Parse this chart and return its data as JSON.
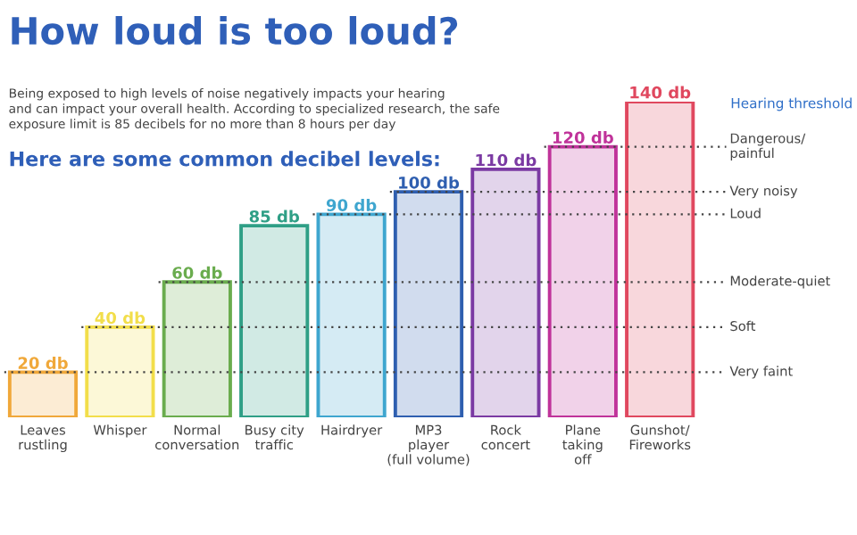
{
  "chart_data": {
    "type": "bar",
    "title": "How loud is too loud?",
    "subtitle": "Being exposed to high levels of noise negatively impacts your hearing\nand can impact your overall health. According to specialized research, the safe\nexposure limit is 85 decibels for no more than 8 hours per day",
    "annotations": [
      "Here are some common decibel levels:",
      "Hearing threshold"
    ],
    "categories": [
      "Leaves\nrustling",
      "Whisper",
      "Normal\nconversation",
      "Busy city\ntraffic",
      "Hairdryer",
      "MP3\nplayer\n(full volume)",
      "Rock\nconcert",
      "Plane\ntaking\noff",
      "Gunshot/\nFireworks"
    ],
    "values": [
      20,
      40,
      60,
      85,
      90,
      100,
      110,
      120,
      140
    ],
    "value_labels": [
      "20 db",
      "40 db",
      "60 db",
      "85 db",
      "90 db",
      "100 db",
      "110 db",
      "120 db",
      "140 db"
    ],
    "colors": [
      "#f0a83a",
      "#f2de4a",
      "#6aac4e",
      "#2f9f86",
      "#3fa6cf",
      "#2f5fb0",
      "#7b3aa3",
      "#c0339a",
      "#e0485f"
    ],
    "ref_lines": [
      {
        "axis": "y",
        "value": 120,
        "label": "Dangerous/\npainful",
        "line_style": "dotted",
        "color": "#444444"
      },
      {
        "axis": "y",
        "value": 100,
        "label": "Very noisy",
        "line_style": "dotted",
        "color": "#444444"
      },
      {
        "axis": "y",
        "value": 90,
        "label": "Loud",
        "line_style": "dotted",
        "color": "#444444"
      },
      {
        "axis": "y",
        "value": 60,
        "label": "Moderate-quiet",
        "line_style": "dotted",
        "color": "#444444"
      },
      {
        "axis": "y",
        "value": 40,
        "label": "Soft",
        "line_style": "dotted",
        "color": "#444444"
      },
      {
        "axis": "y",
        "value": 20,
        "label": "Very faint",
        "line_style": "dotted",
        "color": "#444444"
      }
    ],
    "grid": false
  }
}
